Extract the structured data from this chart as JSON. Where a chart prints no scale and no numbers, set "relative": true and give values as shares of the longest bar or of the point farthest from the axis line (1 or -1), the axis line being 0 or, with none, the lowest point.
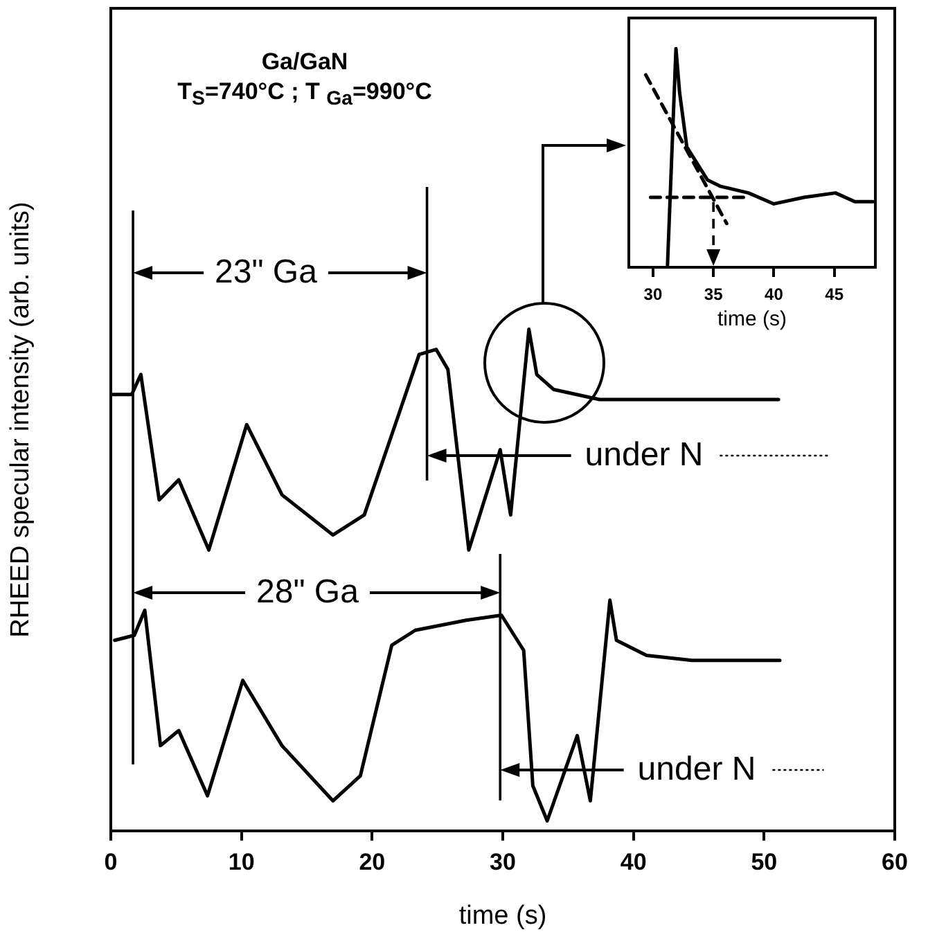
{
  "chart_data": [
    {
      "type": "line",
      "title": "Ga/GaN",
      "subtitle": "T$_{S}$=740°C ;  T $_{Ga}$=990°C",
      "xlabel": "time (s)",
      "ylabel": "RHEED specular intensity (arb. units)",
      "relative": true,
      "marker": "none",
      "xlim": [
        0,
        60
      ],
      "xticks": [
        0,
        10,
        20,
        30,
        40,
        50,
        60
      ],
      "series": [
        {
          "color": "#000000",
          "x": [
            0,
            1.6,
            2.3,
            3.7,
            5.2,
            7.5,
            10.4,
            13.1,
            17.0,
            19.4,
            21.9,
            23.6,
            24.9,
            25.8,
            27.4,
            29.8,
            30.6,
            32.0,
            32.6,
            33.9,
            37.4,
            41.0,
            51.1
          ],
          "values": [
            0.87,
            0.87,
            0.91,
            0.66,
            0.7,
            0.56,
            0.81,
            0.67,
            0.59,
            0.63,
            0.82,
            0.95,
            0.96,
            0.92,
            0.56,
            0.76,
            0.63,
            1.0,
            0.91,
            0.88,
            0.86,
            0.86,
            0.86
          ]
        },
        {
          "color": "#000000",
          "x": [
            0.3,
            1.8,
            2.6,
            3.8,
            5.2,
            7.4,
            10.1,
            13.1,
            17.0,
            19.1,
            21.5,
            23.3,
            27.2,
            29.9,
            31.6,
            32.3,
            33.4,
            35.7,
            36.7,
            38.2,
            38.7,
            41.0,
            44.5,
            51.2
          ],
          "values": [
            0.38,
            0.39,
            0.44,
            0.17,
            0.2,
            0.07,
            0.3,
            0.17,
            0.06,
            0.11,
            0.37,
            0.4,
            0.42,
            0.43,
            0.36,
            0.09,
            0.02,
            0.19,
            0.06,
            0.46,
            0.38,
            0.35,
            0.34,
            0.34
          ]
        }
      ],
      "ref_lines": [
        {
          "axis": "x",
          "value": 1.7
        },
        {
          "axis": "x",
          "value": 24.2
        },
        {
          "axis": "x",
          "value": 29.8
        }
      ],
      "annotations": [
        "23\" Ga",
        "28\" Ga",
        "under N",
        "under N"
      ]
    },
    {
      "type": "line",
      "xlabel": "time (s)",
      "relative": true,
      "marker": "none",
      "xlim": [
        28,
        48.4
      ],
      "xticks": [
        30,
        35,
        40,
        45
      ],
      "series": [
        {
          "color": "#000000",
          "x": [
            31.2,
            31.9,
            32.2,
            32.8,
            34.5,
            35.6,
            37.9,
            40.0,
            42.5,
            45.1,
            46.7,
            48.2
          ],
          "values": [
            0.01,
            1.0,
            0.8,
            0.55,
            0.4,
            0.37,
            0.34,
            0.29,
            0.32,
            0.34,
            0.3,
            0.3
          ]
        },
        {
          "color": "#000000",
          "line_style": "dashed",
          "x": [
            29.4,
            36.1
          ],
          "values": [
            0.88,
            0.2
          ]
        },
        {
          "color": "#000000",
          "line_style": "dashed",
          "x": [
            29.8,
            37.9
          ],
          "values": [
            0.32,
            0.32
          ]
        }
      ],
      "ref_lines": [
        {
          "axis": "x",
          "value": 35,
          "line_style": "dashed"
        }
      ]
    }
  ]
}
